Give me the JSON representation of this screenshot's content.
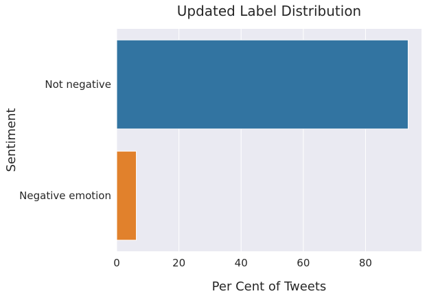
{
  "chart_data": {
    "type": "bar",
    "orientation": "horizontal",
    "title": "Updated Label Distribution",
    "xlabel": "Per Cent of Tweets",
    "ylabel": "Sentiment",
    "categories": [
      "Not negative",
      "Negative emotion"
    ],
    "values": [
      93.7,
      6.3
    ],
    "colors": [
      "#3274a1",
      "#e1812c"
    ],
    "xlim": [
      0,
      98
    ],
    "xticks": [
      0,
      20,
      40,
      60,
      80
    ],
    "grid": true,
    "background": "#eaeaf2"
  }
}
